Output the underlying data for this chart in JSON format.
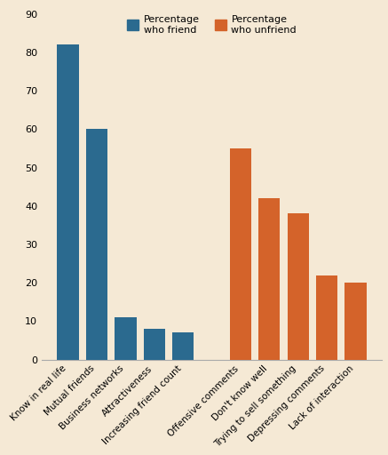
{
  "friend_categories": [
    "Know in real life",
    "Mutual friends",
    "Business networks",
    "Attractiveness",
    "Increasing friend count"
  ],
  "friend_values": [
    82,
    60,
    11,
    8,
    7
  ],
  "unfriend_categories": [
    "Offensive comments",
    "Don't know well",
    "Trying to sell something",
    "Depressing comments",
    "Lack of interaction"
  ],
  "unfriend_values": [
    55,
    42,
    38,
    22,
    20
  ],
  "friend_color": "#2b6a8f",
  "unfriend_color": "#d4632a",
  "background_color": "#f5e9d5",
  "legend_friend_label": "Percentage\nwho friend",
  "legend_unfriend_label": "Percentage\nwho unfriend",
  "yticks": [
    0,
    10,
    20,
    30,
    40,
    50,
    60,
    70,
    80,
    90
  ],
  "ylim": [
    0,
    92
  ]
}
